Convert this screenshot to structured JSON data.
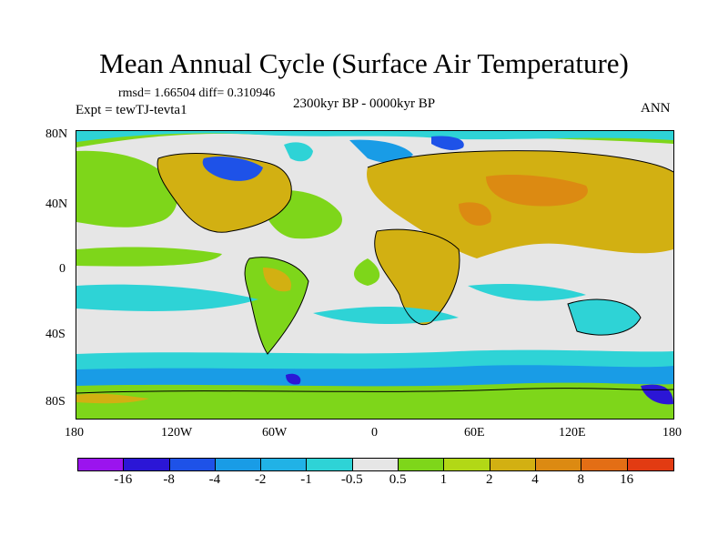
{
  "title": "Mean Annual Cycle (Surface Air Temperature)",
  "stats": "rmsd= 1.66504 diff= 0.310946",
  "experiment": "Expt = tewTJ-tevta1",
  "period": "2300kyr BP - 0000kyr BP",
  "season": "ANN",
  "lat_labels": [
    "80N",
    "40N",
    "0",
    "40S",
    "80S"
  ],
  "lon_labels": [
    "180",
    "120W",
    "60W",
    "0",
    "60E",
    "120E",
    "180"
  ],
  "colorbar": {
    "labels": [
      "-16",
      "-8",
      "-4",
      "-2",
      "-1",
      "-0.5",
      "0.5",
      "1",
      "2",
      "4",
      "8",
      "16"
    ],
    "colors": [
      "#9b14ee",
      "#2b16d6",
      "#1e52e8",
      "#199ce6",
      "#21b2e6",
      "#2ed3d6",
      "#e6e6e6",
      "#7ed61a",
      "#b2d816",
      "#d2b012",
      "#dc8a12",
      "#e36e15",
      "#e23b12"
    ]
  }
}
